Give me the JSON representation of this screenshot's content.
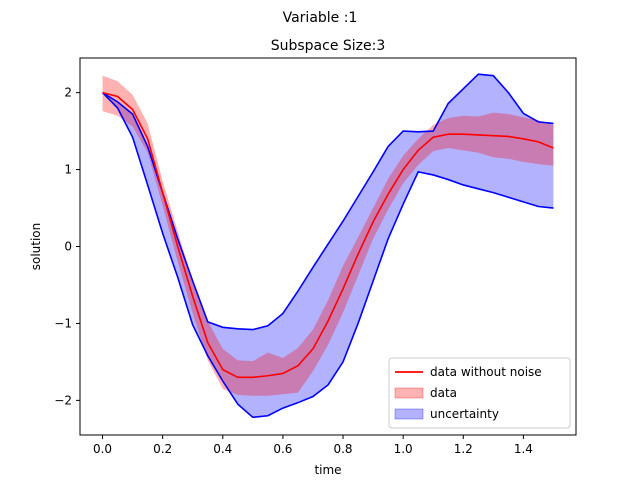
{
  "figure": {
    "suptitle": "Variable :1"
  },
  "chart_data": {
    "type": "line",
    "title": "Subspace Size:3",
    "xlabel": "time",
    "ylabel": "solution",
    "xlim": [
      -0.075,
      1.575
    ],
    "ylim": [
      -2.45,
      2.45
    ],
    "xticks": [
      0.0,
      0.2,
      0.4,
      0.6,
      0.8,
      1.0,
      1.2,
      1.4
    ],
    "xtick_labels": [
      "0.0",
      "0.2",
      "0.4",
      "0.6",
      "0.8",
      "1.0",
      "1.2",
      "1.4"
    ],
    "yticks": [
      -2,
      -1,
      0,
      1,
      2
    ],
    "ytick_labels": [
      "−2",
      "−1",
      "0",
      "1",
      "2"
    ],
    "grid": false,
    "legend_position": "lower-right",
    "colors": {
      "line": "#ff0000",
      "data_band": "#ff0000",
      "uncertainty_band": "#0000ff"
    },
    "series": [
      {
        "name": "data without noise",
        "kind": "line",
        "x": [
          0.0,
          0.05,
          0.1,
          0.15,
          0.2,
          0.25,
          0.3,
          0.35,
          0.4,
          0.45,
          0.5,
          0.55,
          0.6,
          0.65,
          0.7,
          0.75,
          0.8,
          0.85,
          0.9,
          0.95,
          1.0,
          1.05,
          1.1,
          1.15,
          1.2,
          1.25,
          1.3,
          1.35,
          1.4,
          1.45,
          1.5
        ],
        "y": [
          2.0,
          1.95,
          1.78,
          1.4,
          0.7,
          0.0,
          -0.65,
          -1.25,
          -1.6,
          -1.7,
          -1.7,
          -1.68,
          -1.65,
          -1.55,
          -1.33,
          -0.97,
          -0.55,
          -0.1,
          0.32,
          0.68,
          1.0,
          1.25,
          1.42,
          1.46,
          1.46,
          1.45,
          1.44,
          1.43,
          1.4,
          1.36,
          1.28
        ]
      },
      {
        "name": "data",
        "kind": "band",
        "x": [
          0.0,
          0.05,
          0.1,
          0.15,
          0.2,
          0.25,
          0.3,
          0.35,
          0.4,
          0.45,
          0.5,
          0.55,
          0.6,
          0.65,
          0.7,
          0.75,
          0.8,
          0.85,
          0.9,
          0.95,
          1.0,
          1.05,
          1.1,
          1.15,
          1.2,
          1.25,
          1.3,
          1.35,
          1.4,
          1.45,
          1.5
        ],
        "upper": [
          2.22,
          2.15,
          1.97,
          1.6,
          0.85,
          0.2,
          -0.45,
          -0.97,
          -1.33,
          -1.48,
          -1.49,
          -1.38,
          -1.45,
          -1.32,
          -1.08,
          -0.7,
          -0.25,
          0.12,
          0.5,
          0.88,
          1.18,
          1.4,
          1.58,
          1.67,
          1.7,
          1.69,
          1.74,
          1.72,
          1.68,
          1.64,
          1.58
        ],
        "lower": [
          1.76,
          1.7,
          1.56,
          1.22,
          0.53,
          -0.2,
          -0.87,
          -1.48,
          -1.85,
          -1.93,
          -1.94,
          -1.94,
          -1.92,
          -1.9,
          -1.62,
          -1.28,
          -0.86,
          -0.38,
          0.1,
          0.48,
          0.82,
          1.06,
          1.24,
          1.28,
          1.25,
          1.22,
          1.16,
          1.14,
          1.1,
          1.07,
          1.05
        ]
      },
      {
        "name": "uncertainty",
        "kind": "band",
        "x": [
          0.0,
          0.05,
          0.1,
          0.15,
          0.2,
          0.25,
          0.3,
          0.35,
          0.4,
          0.45,
          0.5,
          0.55,
          0.6,
          0.65,
          0.7,
          0.75,
          0.8,
          0.85,
          0.9,
          0.95,
          1.0,
          1.05,
          1.1,
          1.15,
          1.2,
          1.25,
          1.3,
          1.35,
          1.4,
          1.45,
          1.5
        ],
        "upper": [
          2.0,
          1.88,
          1.72,
          1.3,
          0.7,
          0.1,
          -0.45,
          -0.98,
          -1.05,
          -1.07,
          -1.08,
          -1.03,
          -0.87,
          -0.58,
          -0.27,
          0.03,
          0.33,
          0.65,
          0.97,
          1.3,
          1.5,
          1.49,
          1.5,
          1.86,
          2.05,
          2.24,
          2.22,
          2.0,
          1.73,
          1.62,
          1.6
        ],
        "lower": [
          2.0,
          1.8,
          1.42,
          0.8,
          0.17,
          -0.4,
          -1.02,
          -1.42,
          -1.75,
          -2.05,
          -2.22,
          -2.2,
          -2.1,
          -2.03,
          -1.95,
          -1.8,
          -1.5,
          -1.0,
          -0.45,
          0.1,
          0.55,
          0.97,
          0.93,
          0.87,
          0.8,
          0.75,
          0.7,
          0.64,
          0.58,
          0.52,
          0.5
        ]
      }
    ]
  }
}
